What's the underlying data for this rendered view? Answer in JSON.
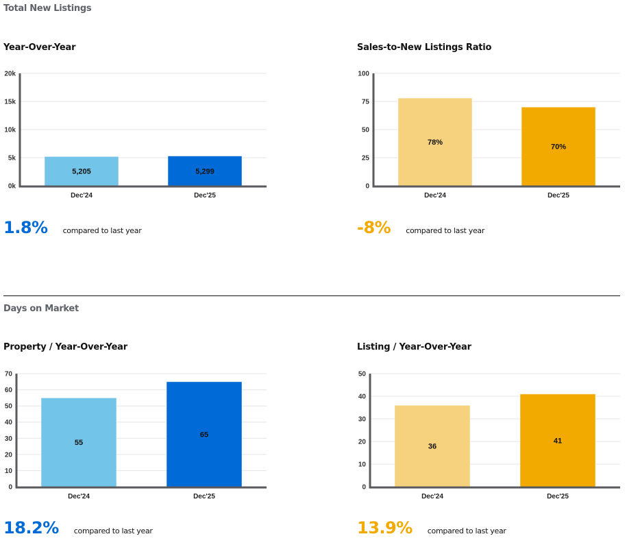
{
  "sections": [
    {
      "title": "Total New Listings"
    },
    {
      "title": "Days on Market"
    }
  ],
  "colors": {
    "blue_light": "#73c4e9",
    "blue_dark": "#006ad6",
    "gold_light": "#f6d17e",
    "gold_dark": "#f2a900",
    "axis": "#5a5a5e",
    "grid": "#e4e4e4"
  },
  "chart_data": [
    {
      "id": "new-listings-yoy",
      "type": "bar",
      "title": "Year-Over-Year",
      "categories": [
        "Dec'24",
        "Dec'25"
      ],
      "values": [
        5205,
        5299
      ],
      "data_labels": [
        "5,205",
        "5,299"
      ],
      "yticks": [
        0,
        5000,
        10000,
        15000,
        20000
      ],
      "ytick_labels": [
        "0k",
        "5k",
        "10k",
        "15k",
        "20k"
      ],
      "ylim": [
        0,
        20000
      ],
      "grid": true,
      "bar_colors": [
        "#73c4e9",
        "#006ad6"
      ],
      "change": {
        "value": "1.8%",
        "label": "compared to last year",
        "color": "#006ad6"
      }
    },
    {
      "id": "sales-to-new-listings-ratio",
      "type": "bar",
      "title": "Sales-to-New Listings Ratio",
      "categories": [
        "Dec'24",
        "Dec'25"
      ],
      "values": [
        78,
        70
      ],
      "data_labels": [
        "78%",
        "70%"
      ],
      "yticks": [
        0,
        25,
        50,
        75,
        100
      ],
      "ytick_labels": [
        "0",
        "25",
        "50",
        "75",
        "100"
      ],
      "ylim": [
        0,
        100
      ],
      "grid": true,
      "bar_colors": [
        "#f6d17e",
        "#f2a900"
      ],
      "change": {
        "value": "-8%",
        "label": "compared to last year",
        "color": "#f2a900"
      }
    },
    {
      "id": "dom-property-yoy",
      "type": "bar",
      "title": "Property / Year-Over-Year",
      "categories": [
        "Dec'24",
        "Dec'25"
      ],
      "values": [
        55,
        65
      ],
      "data_labels": [
        "55",
        "65"
      ],
      "yticks": [
        0,
        10,
        20,
        30,
        40,
        50,
        60,
        70
      ],
      "ytick_labels": [
        "0",
        "10",
        "20",
        "30",
        "40",
        "50",
        "60",
        "70"
      ],
      "ylim": [
        0,
        70
      ],
      "grid": true,
      "bar_colors": [
        "#73c4e9",
        "#006ad6"
      ],
      "change": {
        "value": "18.2%",
        "label": "compared to last year",
        "color": "#006ad6"
      }
    },
    {
      "id": "dom-listing-yoy",
      "type": "bar",
      "title": "Listing / Year-Over-Year",
      "categories": [
        "Dec'24",
        "Dec'25"
      ],
      "values": [
        36,
        41
      ],
      "data_labels": [
        "36",
        "41"
      ],
      "yticks": [
        0,
        10,
        20,
        30,
        40,
        50
      ],
      "ytick_labels": [
        "0",
        "10",
        "20",
        "30",
        "40",
        "50"
      ],
      "ylim": [
        0,
        50
      ],
      "grid": true,
      "bar_colors": [
        "#f6d17e",
        "#f2a900"
      ],
      "change": {
        "value": "13.9%",
        "label": "compared to last year",
        "color": "#f2a900"
      }
    }
  ]
}
